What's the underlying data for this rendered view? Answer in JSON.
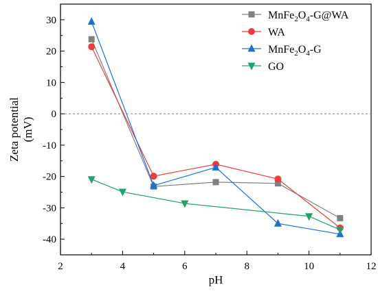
{
  "chart_data": {
    "type": "line",
    "xlabel": "pH",
    "ylabel_line1": "Zeta potential",
    "ylabel_line2": "(mV)",
    "xlim": [
      2,
      12
    ],
    "ylim": [
      -45,
      35
    ],
    "xticks": [
      2,
      4,
      6,
      8,
      10,
      12
    ],
    "yticks": [
      -40,
      -30,
      -20,
      -10,
      0,
      10,
      20,
      30
    ],
    "reference_line": {
      "y": 0,
      "style": "dashed",
      "color": "#808080"
    },
    "grid": false,
    "legend_position": "top-right",
    "series": [
      {
        "key": "mnfe2o4-g-wa",
        "name": "MnFe2O4-G@WA",
        "legend_parts": [
          {
            "t": "MnFe"
          },
          {
            "t": "2",
            "sub": true
          },
          {
            "t": "O"
          },
          {
            "t": "4",
            "sub": true
          },
          {
            "t": "-G@WA"
          }
        ],
        "color": "#808080",
        "marker": "square",
        "x": [
          3,
          5,
          7,
          9,
          11
        ],
        "y": [
          23.8,
          -23.2,
          -21.8,
          -22.2,
          -33.3
        ]
      },
      {
        "key": "wa",
        "name": "WA",
        "legend_parts": [
          {
            "t": "WA"
          }
        ],
        "color": "#ee3b3b",
        "marker": "circle",
        "x": [
          3,
          5,
          7,
          9,
          11
        ],
        "y": [
          21.4,
          -19.9,
          -16.1,
          -20.8,
          -36.4
        ]
      },
      {
        "key": "mnfe2o4-g",
        "name": "MnFe2O4-G",
        "legend_parts": [
          {
            "t": "MnFe"
          },
          {
            "t": "2",
            "sub": true
          },
          {
            "t": "O"
          },
          {
            "t": "4",
            "sub": true
          },
          {
            "t": "-G"
          }
        ],
        "color": "#1f6fd1",
        "marker": "triangle-up",
        "x": [
          3,
          5,
          7,
          9,
          11
        ],
        "y": [
          29.4,
          -22.9,
          -17.1,
          -35.0,
          -38.4
        ]
      },
      {
        "key": "go",
        "name": "GO",
        "legend_parts": [
          {
            "t": "GO"
          }
        ],
        "color": "#1fa36b",
        "marker": "triangle-down",
        "x": [
          3,
          4,
          6,
          10,
          11
        ],
        "y": [
          -20.9,
          -24.9,
          -28.6,
          -32.7,
          -37.0
        ]
      }
    ]
  }
}
